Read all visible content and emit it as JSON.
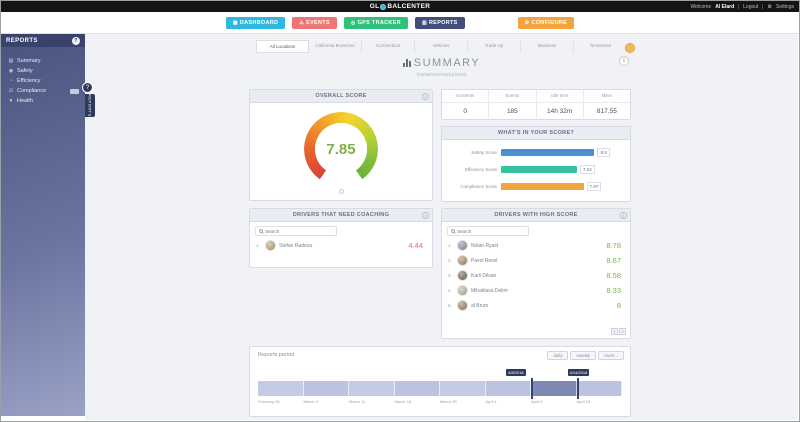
{
  "topbar": {
    "logo_prefix": "GL",
    "logo_suffix": "BALCENTER",
    "welcome": "Welcome",
    "user": "Al Elard",
    "logout": "Logout",
    "settings": "Settings"
  },
  "nav": {
    "items": [
      {
        "label": "DASHBOARD",
        "color": "#2eb7e0"
      },
      {
        "label": "EVENTS",
        "color": "#ee7572"
      },
      {
        "label": "GPS TRACKER",
        "color": "#2fc179"
      },
      {
        "label": "REPORTS",
        "color": "#414d7d"
      },
      {
        "label": "CONFIGURE",
        "color": "#f2a33c"
      }
    ]
  },
  "sidebar": {
    "title": "REPORTS",
    "tab_label": "REPORTS",
    "items": [
      {
        "label": "Summary"
      },
      {
        "label": "Safety"
      },
      {
        "label": "Efficiency"
      },
      {
        "label": "Compliance"
      },
      {
        "label": "Health"
      }
    ]
  },
  "tabs": [
    {
      "label": "All Locations"
    },
    {
      "label": "California Branches"
    },
    {
      "label": "Connecticut"
    },
    {
      "label": "Vehicles"
    },
    {
      "label": "Trade Up"
    },
    {
      "label": "Business"
    },
    {
      "label": "Tennessee"
    }
  ],
  "summary": {
    "title": "SUMMARY",
    "date_range": "(04/08/2018-04/14/2018)"
  },
  "overall_score": {
    "header": "OVERALL SCORE",
    "value": "7.85",
    "value_color": "#7cb342"
  },
  "stats": {
    "columns": [
      {
        "label": "Incidents",
        "value": "0"
      },
      {
        "label": "Events",
        "value": "185"
      },
      {
        "label": "Idle time",
        "value": "14h 32m"
      },
      {
        "label": "Miles",
        "value": "817.55"
      }
    ]
  },
  "score_breakdown": {
    "header": "WHAT'S IN YOUR SCORE?",
    "rows": [
      {
        "label": "Safety Score",
        "value": "8.9",
        "color": "#4a90d9"
      },
      {
        "label": "Efficiency Score",
        "value": "7.24",
        "color": "#35c2a0"
      },
      {
        "label": "Compliance Score",
        "value": "7.87",
        "color": "#f2a33c"
      }
    ]
  },
  "coaching": {
    "header": "DRIVERS THAT NEED COACHING",
    "search_placeholder": "Search",
    "score_color": "#e26b6b",
    "rows": [
      {
        "rank": "1.",
        "name": "Stefan Radeou",
        "score": "4.44"
      }
    ]
  },
  "high_score": {
    "header": "DRIVERS WITH HIGH SCORE",
    "search_placeholder": "Search",
    "score_color": "#7cb342",
    "rows": [
      {
        "rank": "1.",
        "name": "Nolan Ryast",
        "score": "8.78"
      },
      {
        "rank": "2.",
        "name": "Pavol Ressl",
        "score": "8.67"
      },
      {
        "rank": "3.",
        "name": "Karli Dilsan",
        "score": "8.58"
      },
      {
        "rank": "4.",
        "name": "Mihaklava Delim",
        "score": "8.33"
      },
      {
        "rank": "5.",
        "name": "al Brum",
        "score": "8"
      }
    ],
    "pagination": [
      {
        "label": "1"
      },
      {
        "label": "2"
      }
    ]
  },
  "reports_period": {
    "label": "Reports period",
    "buttons": [
      {
        "label": "daily"
      },
      {
        "label": "weekly"
      },
      {
        "label": "mont..."
      }
    ],
    "selection_start": "4/8/2018",
    "selection_end": "4/14/2018",
    "axis_labels": [
      {
        "label": "February 26"
      },
      {
        "label": "March 4"
      },
      {
        "label": "March 11"
      },
      {
        "label": "March 18"
      },
      {
        "label": "March 25"
      },
      {
        "label": "April 1"
      },
      {
        "label": "April 8"
      },
      {
        "label": "April 15"
      }
    ]
  },
  "icons": {
    "dashboard": "▦",
    "events": "⚠",
    "gps": "◎",
    "reports": "▥",
    "configure": "⚙",
    "gear": "⚙",
    "info": "i",
    "help": "?",
    "export": "↥",
    "summary": "▤",
    "safety": "◉",
    "efficiency": "◔",
    "compliance": "☑",
    "health": "♥"
  }
}
